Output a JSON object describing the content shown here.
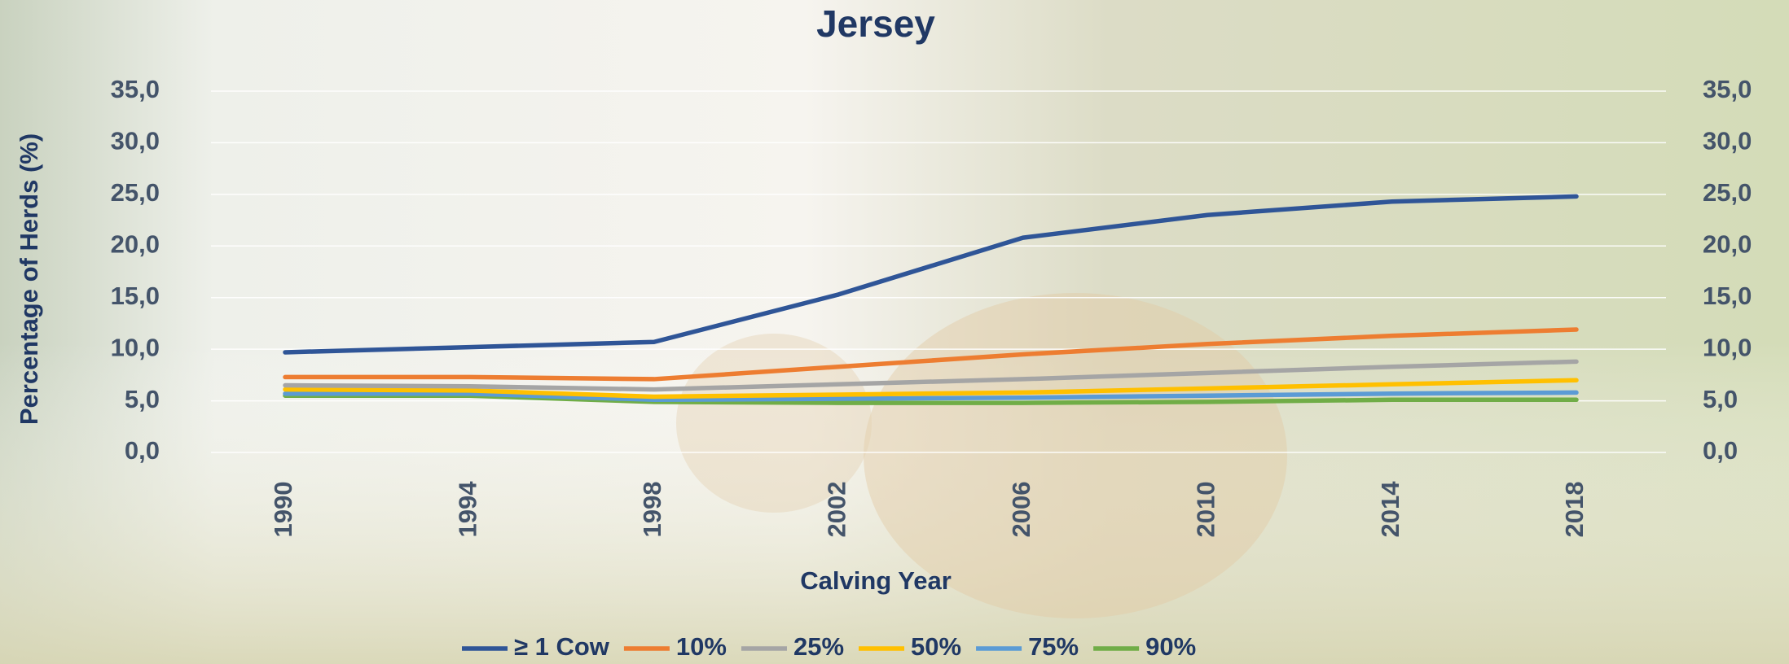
{
  "chart_data": {
    "type": "line",
    "title": "Jersey",
    "xlabel": "Calving Year",
    "ylabel": "Percentage of Herds (%)",
    "categories": [
      "1990",
      "1994",
      "1998",
      "2002",
      "2006",
      "2010",
      "2014",
      "2018"
    ],
    "series": [
      {
        "name": "≥ 1 Cow",
        "color": "#2f5597",
        "values": [
          9.7,
          10.2,
          10.7,
          15.3,
          20.8,
          23.0,
          24.3,
          24.8
        ]
      },
      {
        "name": "10%",
        "color": "#ed7d31",
        "values": [
          7.3,
          7.3,
          7.1,
          8.3,
          9.5,
          10.5,
          11.3,
          11.9
        ]
      },
      {
        "name": "25%",
        "color": "#a5a5a5",
        "values": [
          6.5,
          6.4,
          6.1,
          6.6,
          7.1,
          7.7,
          8.3,
          8.8
        ]
      },
      {
        "name": "50%",
        "color": "#ffc000",
        "values": [
          6.1,
          6.0,
          5.4,
          5.6,
          5.8,
          6.2,
          6.6,
          7.0
        ]
      },
      {
        "name": "75%",
        "color": "#5b9bd5",
        "values": [
          5.7,
          5.7,
          5.1,
          5.2,
          5.3,
          5.5,
          5.7,
          5.8
        ]
      },
      {
        "name": "90%",
        "color": "#70ad47",
        "values": [
          5.5,
          5.5,
          4.9,
          4.8,
          4.8,
          4.9,
          5.1,
          5.1
        ]
      }
    ],
    "ylim": [
      0,
      35
    ],
    "yticks": [
      {
        "value": 0,
        "label": "0,0"
      },
      {
        "value": 5,
        "label": "5,0"
      },
      {
        "value": 10,
        "label": "10,0"
      },
      {
        "value": 15,
        "label": "15,0"
      },
      {
        "value": 20,
        "label": "20,0"
      },
      {
        "value": 25,
        "label": "25,0"
      },
      {
        "value": 30,
        "label": "30,0"
      },
      {
        "value": 35,
        "label": "35,0"
      }
    ],
    "y2lim": [
      0,
      35
    ],
    "y2ticks": [
      {
        "value": 0,
        "label": "0,0"
      },
      {
        "value": 5,
        "label": "5,0"
      },
      {
        "value": 10,
        "label": "10,0"
      },
      {
        "value": 15,
        "label": "15,0"
      },
      {
        "value": 20,
        "label": "20,0"
      },
      {
        "value": 25,
        "label": "25,0"
      },
      {
        "value": 30,
        "label": "30,0"
      },
      {
        "value": 35,
        "label": "35,0"
      }
    ],
    "grid": true,
    "legend": "bottom"
  }
}
